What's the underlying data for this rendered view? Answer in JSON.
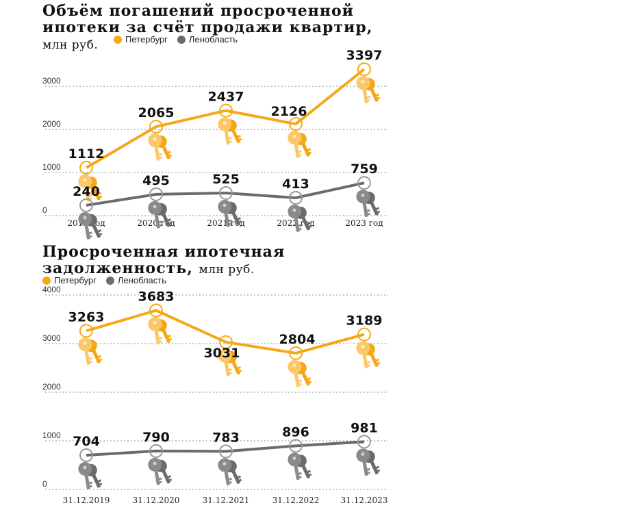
{
  "colors": {
    "petersburg": "#F5A817",
    "lenoblast": "#6B6B6B",
    "key_light": "#FBC869",
    "key_gray": "#8A8A8A",
    "grid": "#8a8a8a"
  },
  "chart_data": [
    {
      "type": "line",
      "title": "Объём погашений просроченной ипотеки за счёт продажи квартир,",
      "unit": "млн руб.",
      "categories": [
        "2019 год",
        "2020 год",
        "2021 год",
        "2022 год",
        "2023 год"
      ],
      "series": [
        {
          "name": "Петербург",
          "values": [
            1112,
            2065,
            2437,
            2126,
            3397
          ]
        },
        {
          "name": "Ленобласть",
          "values": [
            240,
            495,
            525,
            413,
            759
          ]
        }
      ],
      "yticks": [
        "0",
        "1000",
        "2000",
        "3000"
      ],
      "ylim": [
        0,
        3400
      ],
      "grid": true,
      "legend": "top-left",
      "marker": "keys"
    },
    {
      "type": "line",
      "title": "Просроченная ипотечная задолженность,",
      "unit": "млн руб.",
      "categories": [
        "31.12.2019",
        "31.12.2020",
        "31.12.2021",
        "31.12.2022",
        "31.12.2023"
      ],
      "series": [
        {
          "name": "Петербург",
          "values": [
            3263,
            3683,
            3031,
            2804,
            3189
          ]
        },
        {
          "name": "Ленобласть",
          "values": [
            704,
            790,
            783,
            896,
            981
          ]
        }
      ],
      "yticks": [
        "0",
        "1000",
        "2000",
        "3000",
        "4000"
      ],
      "ylim": [
        0,
        4000
      ],
      "grid": true,
      "legend": "top-left",
      "marker": "keys"
    }
  ]
}
